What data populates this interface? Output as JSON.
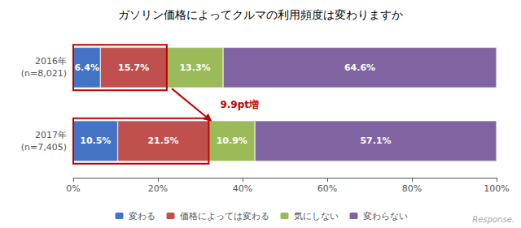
{
  "chart_data": {
    "type": "bar",
    "orientation": "horizontal",
    "stacked": true,
    "title": "ガソリン価格によってクルマの利用頻度は変わりますか",
    "categories": [
      "2016年\n(n=8,021)",
      "2017年\n(n=7,405)"
    ],
    "series": [
      {
        "name": "変わる",
        "color": "#4472C4",
        "values": [
          6.4,
          10.5
        ],
        "value_labels": [
          "6.4%",
          "10.5%"
        ]
      },
      {
        "name": "価格によっては変わる",
        "color": "#C0504D",
        "values": [
          15.7,
          21.5
        ],
        "value_labels": [
          "15.7%",
          "21.5%"
        ]
      },
      {
        "name": "気にしない",
        "color": "#9BBB59",
        "values": [
          13.3,
          10.9
        ],
        "value_labels": [
          "13.3%",
          "10.9%"
        ]
      },
      {
        "name": "変わらない",
        "color": "#8064A2",
        "values": [
          64.6,
          57.1
        ],
        "value_labels": [
          "64.6%",
          "57.1%"
        ]
      }
    ],
    "xlim": [
      0,
      100
    ],
    "xticks": [
      {
        "value": 0,
        "label": "0%"
      },
      {
        "value": 20,
        "label": "20%"
      },
      {
        "value": 40,
        "label": "40%"
      },
      {
        "value": 60,
        "label": "60%"
      },
      {
        "value": 80,
        "label": "80%"
      },
      {
        "value": 100,
        "label": "100%"
      }
    ],
    "data_labels": true,
    "grid": false,
    "legend": "bottom",
    "annotations": [
      {
        "text": "9.9pt増",
        "color": "#C00000"
      },
      {
        "text": "Response.",
        "color": "#AAAAAA"
      }
    ]
  }
}
